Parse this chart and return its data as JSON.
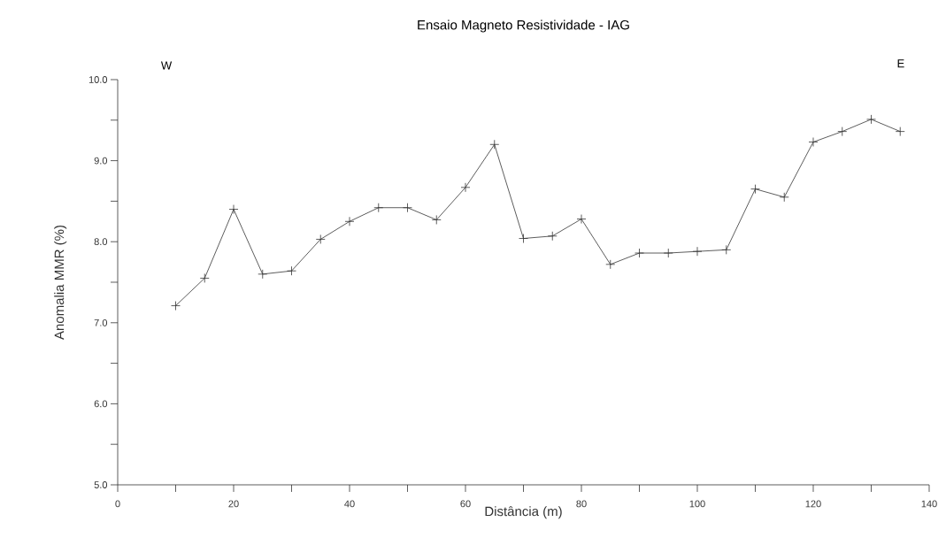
{
  "chart_data": {
    "type": "line",
    "title": "Ensaio Magneto Resistividade - IAG",
    "xlabel": "Distância (m)",
    "ylabel": "Anomalia MMR (%)",
    "annotations": [
      "W",
      "E"
    ],
    "x": [
      10,
      15,
      20,
      25,
      30,
      35,
      40,
      45,
      50,
      55,
      60,
      65,
      70,
      75,
      80,
      85,
      90,
      95,
      100,
      105,
      110,
      115,
      120,
      125,
      130,
      135
    ],
    "series": [
      {
        "color": "#333333",
        "values": [
          7.21,
          7.55,
          8.4,
          7.6,
          7.64,
          8.03,
          8.25,
          8.42,
          8.42,
          8.27,
          8.67,
          9.2,
          8.04,
          8.07,
          8.28,
          7.72,
          7.86,
          7.86,
          7.88,
          7.9,
          8.65,
          8.55,
          9.23,
          9.36,
          9.51,
          9.36
        ]
      }
    ],
    "xlim": [
      0,
      140
    ],
    "ylim": [
      5,
      10
    ],
    "xticks": [
      0,
      {
        "value": 10,
        "label": null
      },
      20,
      {
        "value": 30,
        "label": null
      },
      40,
      {
        "value": 50,
        "label": null
      },
      60,
      {
        "value": 70,
        "label": null
      },
      80,
      {
        "value": 90,
        "label": null
      },
      100,
      {
        "value": 110,
        "label": null
      },
      120,
      {
        "value": 130,
        "label": null
      },
      140
    ],
    "yticks": [
      {
        "value": 5,
        "label": "5.0"
      },
      {
        "value": 5.5,
        "label": null
      },
      {
        "value": 6,
        "label": "6.0"
      },
      {
        "value": 6.5,
        "label": null
      },
      {
        "value": 7,
        "label": "7.0"
      },
      {
        "value": 7.5,
        "label": null
      },
      {
        "value": 8,
        "label": "8.0"
      },
      {
        "value": 8.5,
        "label": null
      },
      {
        "value": 9,
        "label": "9.0"
      },
      {
        "value": 9.5,
        "label": null
      },
      {
        "value": 10,
        "label": "10.0"
      }
    ],
    "grid": false,
    "legend": false,
    "marker": "cross",
    "line_style": "solid"
  }
}
